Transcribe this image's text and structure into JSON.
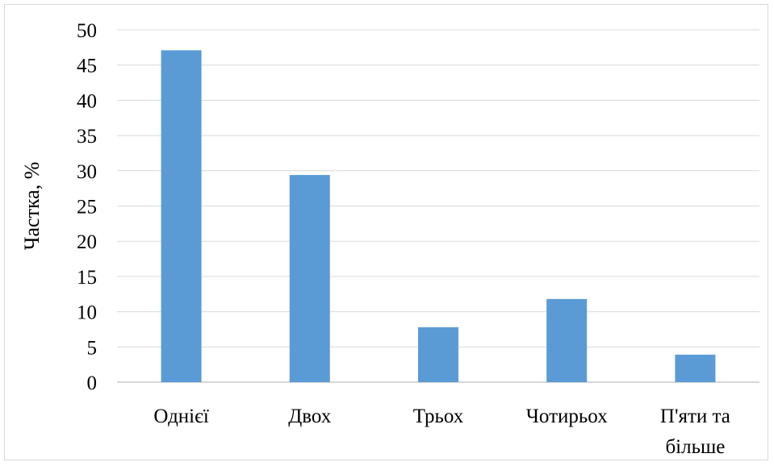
{
  "chart_data": {
    "type": "bar",
    "title": "",
    "xlabel": "",
    "ylabel": "Частка, %",
    "categories": [
      [
        "Однієї"
      ],
      [
        "Двох"
      ],
      [
        "Трьох"
      ],
      [
        "Чотирьох"
      ],
      [
        "П'яти та",
        "більше"
      ]
    ],
    "values": [
      47.1,
      29.4,
      7.8,
      11.8,
      3.9
    ],
    "ylim": [
      0,
      50
    ],
    "yticks": [
      0,
      5,
      10,
      15,
      20,
      25,
      30,
      35,
      40,
      45,
      50
    ],
    "grid": true,
    "legend": "none",
    "bar_color": "#5b9bd5",
    "grid_color": "#d9d9d9",
    "axis_color": "#bfbfbf"
  }
}
